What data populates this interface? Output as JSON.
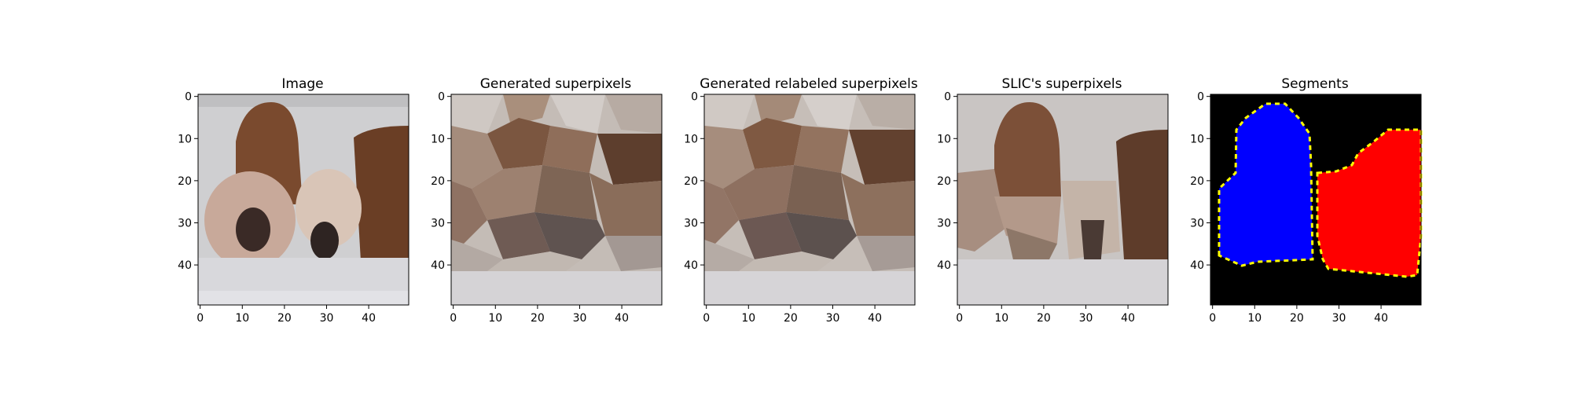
{
  "chart_data": [
    {
      "type": "image",
      "title": "Image",
      "xlim": [
        0,
        50
      ],
      "ylim": [
        0,
        50
      ],
      "xticks": [
        0,
        10,
        20,
        30,
        40
      ],
      "yticks": [
        0,
        10,
        20,
        30,
        40
      ]
    },
    {
      "type": "image",
      "title": "Generated superpixels",
      "xlim": [
        0,
        50
      ],
      "ylim": [
        0,
        50
      ],
      "xticks": [
        0,
        10,
        20,
        30,
        40
      ],
      "yticks": [
        0,
        10,
        20,
        30,
        40
      ]
    },
    {
      "type": "image",
      "title": "Generated relabeled superpixels",
      "xlim": [
        0,
        50
      ],
      "ylim": [
        0,
        50
      ],
      "xticks": [
        0,
        10,
        20,
        30,
        40
      ],
      "yticks": [
        0,
        10,
        20,
        30,
        40
      ]
    },
    {
      "type": "image",
      "title": "SLIC's superpixels",
      "xlim": [
        0,
        50
      ],
      "ylim": [
        0,
        50
      ],
      "xticks": [
        0,
        10,
        20,
        30,
        40
      ],
      "yticks": [
        0,
        10,
        20,
        30,
        40
      ]
    },
    {
      "type": "image",
      "title": "Segments",
      "xlim": [
        0,
        50
      ],
      "ylim": [
        0,
        50
      ],
      "xticks": [
        0,
        10,
        20,
        30,
        40
      ],
      "yticks": [
        0,
        10,
        20,
        30,
        40
      ],
      "colors": {
        "background": "#000000",
        "segment_left": "#0000ff",
        "segment_right": "#ff0000",
        "boundary": "#ffff00"
      }
    }
  ]
}
